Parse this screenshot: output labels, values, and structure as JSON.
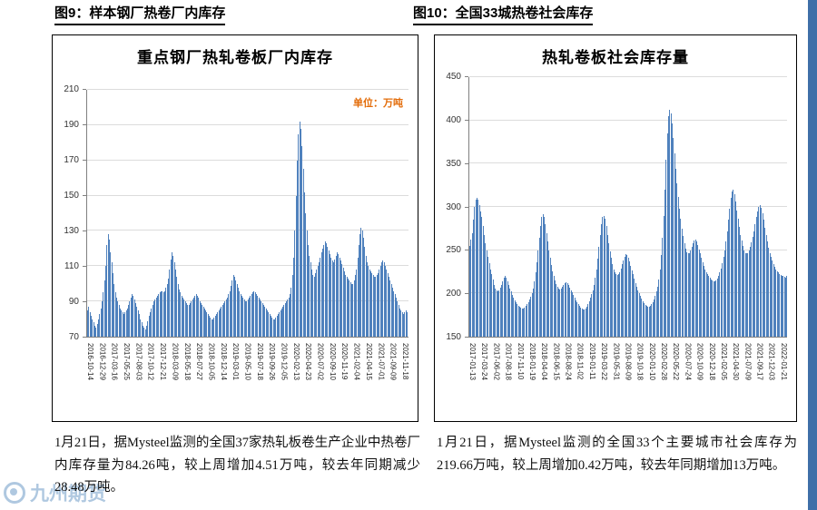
{
  "page": {
    "left_header": "图9：样本钢厂热卷厂内库存",
    "right_header": "图10：全国33城热卷社会库存",
    "left_note": "1月21日，据Mysteel监测的全国37家热轧板卷生产企业中热卷厂内库存量为84.26吨，较上周增加4.51万吨，较去年同期减少28.48万吨。",
    "right_note": "1月21日，据Mysteel监测的全国33个主要城市社会库存为219.66万吨，较上周增加0.42万吨，较去年同期增加13万吨。",
    "watermark": "九州期货",
    "accent_strip_color": "#3f6fa8"
  },
  "chart_data": [
    {
      "type": "bar",
      "title": "重点钢厂热轧卷板厂内库存",
      "unit_label": "单位：万吨",
      "bar_color": "#4f81bd",
      "ylim": [
        70,
        210
      ],
      "yticks": [
        70,
        90,
        110,
        130,
        150,
        170,
        190,
        210
      ],
      "grid": true,
      "categories": [
        "2016-10-14",
        "2016-12-29",
        "2017-03-16",
        "2017-05-25",
        "2017-08-03",
        "2017-10-12",
        "2017-12-21",
        "2018-03-09",
        "2018-05-18",
        "2018-07-27",
        "2018-10-05",
        "2018-12-14",
        "2019-03-01",
        "2019-05-10",
        "2019-07-18",
        "2019-09-26",
        "2019-12-05",
        "2020-02-13",
        "2020-04-23",
        "2020-07-02",
        "2020-09-10",
        "2020-11-19",
        "2021-02-04",
        "2021-04-15",
        "2021-07-01",
        "2021-09-09",
        "2021-11-18"
      ],
      "values": [
        85,
        87,
        84,
        82,
        80,
        78,
        76,
        75,
        77,
        80,
        83,
        86,
        90,
        95,
        102,
        110,
        122,
        128,
        125,
        118,
        112,
        106,
        100,
        95,
        92,
        90,
        88,
        86,
        85,
        84,
        83,
        84,
        85,
        86,
        88,
        90,
        92,
        94,
        93,
        91,
        89,
        87,
        85,
        83,
        80,
        78,
        76,
        75,
        74,
        76,
        79,
        82,
        84,
        86,
        88,
        90,
        91,
        92,
        93,
        94,
        95,
        96,
        96,
        95,
        96,
        98,
        100,
        103,
        108,
        114,
        118,
        116,
        112,
        108,
        104,
        100,
        97,
        95,
        93,
        92,
        91,
        90,
        89,
        88,
        88,
        89,
        90,
        91,
        92,
        93,
        94,
        93,
        92,
        90,
        89,
        88,
        87,
        86,
        85,
        84,
        83,
        82,
        81,
        80,
        80,
        81,
        82,
        83,
        84,
        85,
        86,
        87,
        88,
        89,
        90,
        91,
        92,
        94,
        96,
        99,
        102,
        105,
        104,
        102,
        100,
        98,
        96,
        94,
        93,
        92,
        91,
        90,
        90,
        91,
        92,
        93,
        94,
        95,
        96,
        95,
        94,
        93,
        92,
        91,
        90,
        89,
        88,
        87,
        86,
        85,
        84,
        83,
        82,
        81,
        80,
        80,
        81,
        82,
        83,
        84,
        85,
        86,
        87,
        88,
        89,
        90,
        91,
        92,
        94,
        98,
        105,
        115,
        130,
        150,
        170,
        185,
        192,
        188,
        178,
        165,
        152,
        140,
        130,
        122,
        116,
        112,
        108,
        105,
        104,
        106,
        108,
        110,
        112,
        115,
        118,
        120,
        122,
        124,
        123,
        121,
        119,
        117,
        115,
        113,
        112,
        114,
        116,
        118,
        117,
        115,
        113,
        111,
        109,
        107,
        105,
        104,
        103,
        102,
        101,
        100,
        100,
        102,
        105,
        108,
        115,
        122,
        128,
        132,
        130,
        126,
        121,
        116,
        112,
        110,
        108,
        107,
        106,
        105,
        104,
        104,
        105,
        106,
        108,
        110,
        112,
        113,
        112,
        110,
        108,
        106,
        104,
        102,
        100,
        98,
        96,
        94,
        92,
        90,
        88,
        86,
        85,
        84,
        83,
        84,
        85,
        84
      ]
    },
    {
      "type": "bar",
      "title": "热轧卷板社会库存量",
      "unit_label": "",
      "bar_color": "#4f81bd",
      "ylim": [
        150,
        450
      ],
      "yticks": [
        150,
        200,
        250,
        300,
        350,
        400,
        450
      ],
      "grid": true,
      "categories": [
        "2017-01-13",
        "2017-03-24",
        "2017-06-02",
        "2017-08-18",
        "2017-11-10",
        "2018-01-19",
        "2018-04-04",
        "2018-06-15",
        "2018-08-24",
        "2018-11-02",
        "2019-01-11",
        "2019-03-22",
        "2019-05-31",
        "2019-08-09",
        "2019-10-18",
        "2020-01-10",
        "2020-02-28",
        "2020-05-22",
        "2020-07-24",
        "2020-10-09",
        "2020-12-18",
        "2021-02-05",
        "2021-04-30",
        "2021-07-09",
        "2021-09-17",
        "2021-12-03",
        "2022-01-21"
      ],
      "values": [
        255,
        262,
        270,
        285,
        300,
        308,
        310,
        308,
        302,
        295,
        288,
        278,
        268,
        258,
        250,
        242,
        235,
        228,
        222,
        216,
        210,
        206,
        203,
        202,
        204,
        207,
        210,
        214,
        218,
        220,
        218,
        214,
        210,
        206,
        202,
        198,
        195,
        192,
        190,
        188,
        186,
        185,
        184,
        183,
        183,
        184,
        186,
        188,
        190,
        193,
        196,
        200,
        206,
        214,
        224,
        236,
        250,
        264,
        278,
        288,
        292,
        288,
        280,
        270,
        260,
        250,
        241,
        233,
        226,
        220,
        215,
        211,
        208,
        206,
        205,
        206,
        208,
        210,
        212,
        213,
        212,
        210,
        207,
        204,
        201,
        198,
        195,
        192,
        190,
        188,
        186,
        184,
        183,
        182,
        182,
        183,
        185,
        188,
        191,
        195,
        199,
        204,
        210,
        218,
        228,
        240,
        254,
        268,
        280,
        288,
        290,
        286,
        278,
        268,
        258,
        249,
        241,
        234,
        228,
        224,
        222,
        221,
        222,
        225,
        229,
        234,
        238,
        242,
        245,
        244,
        241,
        237,
        232,
        227,
        222,
        217,
        212,
        208,
        204,
        200,
        197,
        194,
        191,
        189,
        187,
        186,
        185,
        185,
        186,
        188,
        190,
        193,
        197,
        202,
        208,
        216,
        228,
        244,
        264,
        290,
        320,
        355,
        385,
        405,
        412,
        408,
        396,
        380,
        362,
        344,
        327,
        312,
        298,
        286,
        275,
        266,
        258,
        252,
        248,
        246,
        247,
        250,
        254,
        258,
        261,
        262,
        260,
        256,
        251,
        246,
        241,
        236,
        232,
        228,
        225,
        222,
        220,
        218,
        216,
        215,
        214,
        214,
        215,
        217,
        220,
        224,
        229,
        235,
        242,
        250,
        260,
        272,
        285,
        298,
        310,
        318,
        320,
        315,
        306,
        296,
        286,
        277,
        268,
        261,
        255,
        250,
        247,
        246,
        247,
        250,
        254,
        259,
        265,
        272,
        280,
        288,
        295,
        300,
        302,
        299,
        293,
        285,
        276,
        268,
        260,
        253,
        247,
        242,
        238,
        234,
        231,
        228,
        226,
        224,
        222,
        221,
        220,
        220,
        219,
        218,
        220
      ]
    }
  ]
}
